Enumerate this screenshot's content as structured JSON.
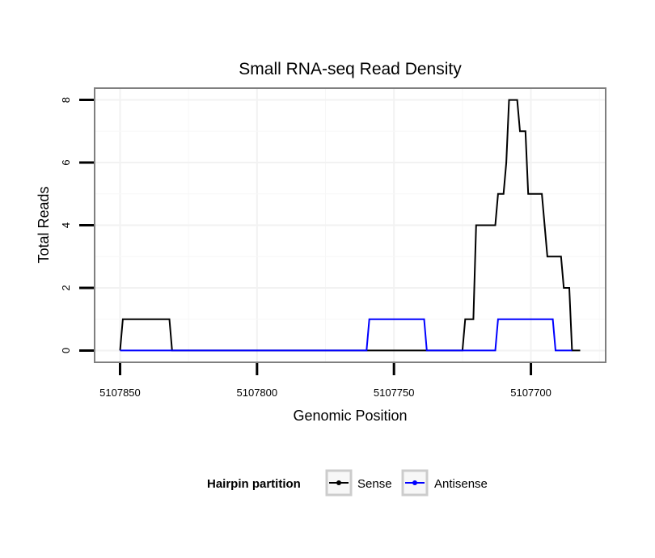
{
  "chart_data": {
    "type": "line",
    "title": "Small RNA-seq Read Density",
    "xlabel": "Genomic Position",
    "ylabel": "Total Reads",
    "x_reversed": true,
    "xlim": [
      5107859,
      5107673
    ],
    "ylim": [
      -0.35,
      8.35
    ],
    "xticks": [
      5107850,
      5107800,
      5107750,
      5107700
    ],
    "xtick_labels": [
      "5107850",
      "5107800",
      "5107750",
      "5107700"
    ],
    "yticks": [
      0,
      2,
      4,
      6,
      8
    ],
    "ytick_labels": [
      "0",
      "2",
      "4",
      "6",
      "8"
    ],
    "grid": true,
    "legend_position": "bottom",
    "legend_title": "Hairpin partition",
    "series": [
      {
        "name": "Sense",
        "color": "#000000",
        "points": [
          [
            5107850,
            0
          ],
          [
            5107849,
            1
          ],
          [
            5107832,
            1
          ],
          [
            5107831,
            0
          ],
          [
            5107725,
            0
          ],
          [
            5107724,
            1
          ],
          [
            5107721,
            1
          ],
          [
            5107720,
            4
          ],
          [
            5107713,
            4
          ],
          [
            5107712,
            5
          ],
          [
            5107710,
            5
          ],
          [
            5107709,
            6
          ],
          [
            5107708,
            8
          ],
          [
            5107705,
            8
          ],
          [
            5107704,
            7
          ],
          [
            5107702,
            7
          ],
          [
            5107701,
            5
          ],
          [
            5107696,
            5
          ],
          [
            5107694,
            3
          ],
          [
            5107689,
            3
          ],
          [
            5107688,
            2
          ],
          [
            5107686,
            2
          ],
          [
            5107685,
            0
          ],
          [
            5107682,
            0
          ]
        ]
      },
      {
        "name": "Antisense",
        "color": "#0000ff",
        "points": [
          [
            5107850,
            0
          ],
          [
            5107760,
            0
          ],
          [
            5107759,
            1
          ],
          [
            5107739,
            1
          ],
          [
            5107738,
            0
          ],
          [
            5107713,
            0
          ],
          [
            5107712,
            1
          ],
          [
            5107692,
            1
          ],
          [
            5107691,
            0
          ],
          [
            5107685,
            0
          ]
        ]
      }
    ]
  },
  "legend": {
    "title": "Hairpin partition",
    "items": [
      {
        "label": "Sense",
        "color": "#000000"
      },
      {
        "label": "Antisense",
        "color": "#0000ff"
      }
    ]
  }
}
